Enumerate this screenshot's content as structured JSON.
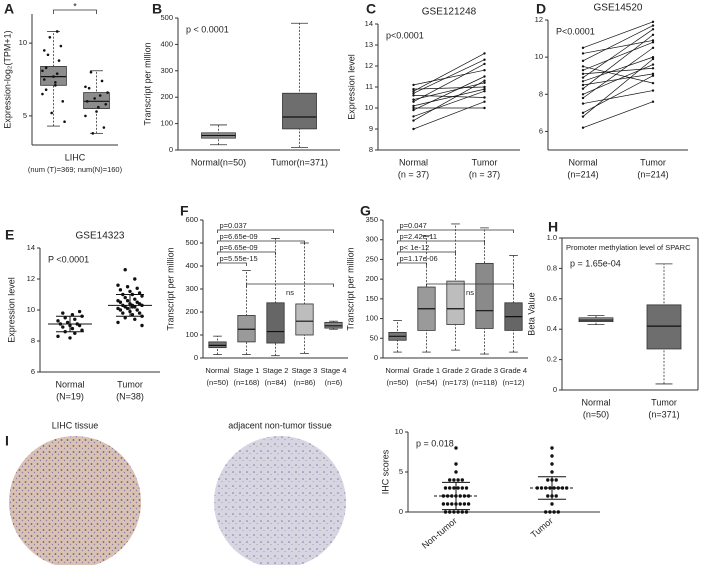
{
  "tissue_labels": [
    "LIHC tissue",
    "adjacent non-tumor tissue"
  ],
  "chart_data": [
    {
      "type": "box",
      "label": "A",
      "ylabel": "Expression-log₂(TPM+1)",
      "categories": [
        "LIHC"
      ],
      "category_notes": [
        "(num (T)=369; num(N)=160)"
      ],
      "significance": "*",
      "ylim": [
        3,
        12
      ],
      "yticks": [
        5,
        10
      ],
      "colors": [
        "#8c8c8c",
        "#8c8c8c"
      ],
      "point_color": "#111",
      "boxes": [
        {
          "min": 4.3,
          "q1": 7.1,
          "median": 7.7,
          "q3": 8.4,
          "max": 10.8,
          "points": [
            6.5,
            7.1,
            7.5,
            7.9,
            8.3,
            8.8,
            9.2,
            9.8,
            10.4,
            6.0,
            5.2,
            4.6,
            7.7,
            8.1,
            7.3,
            9.5,
            10.8,
            6.8
          ]
        },
        {
          "min": 3.8,
          "q1": 5.5,
          "median": 6.0,
          "q3": 6.6,
          "max": 8.1,
          "points": [
            5.0,
            5.6,
            6.0,
            6.4,
            6.9,
            7.4,
            8.0,
            4.2,
            3.8,
            5.8,
            6.2,
            6.6,
            5.3,
            7.0
          ]
        }
      ]
    },
    {
      "type": "box",
      "label": "B",
      "pvalue": "p < 0.0001",
      "ylabel": "Transcript per million",
      "categories": [
        "Normal(n=50)",
        "Tumor(n=371)"
      ],
      "ylim": [
        0,
        500
      ],
      "yticks": [
        0,
        100,
        200,
        300,
        400,
        500
      ],
      "colors": [
        "#9a9a9a",
        "#6e6e6e"
      ],
      "boxes": [
        {
          "min": 20,
          "q1": 45,
          "median": 55,
          "q3": 65,
          "max": 95
        },
        {
          "min": 10,
          "q1": 80,
          "median": 125,
          "q3": 215,
          "max": 480
        }
      ]
    },
    {
      "type": "paired",
      "label": "C",
      "title": "GSE121248",
      "pvalue": "p<0.0001",
      "ylabel": "Expression  level",
      "categories": [
        "Normal",
        "Tumor"
      ],
      "category_notes": [
        "(n = 37)",
        "(n = 37)"
      ],
      "ylim": [
        8,
        14
      ],
      "yticks": [
        8,
        9,
        10,
        11,
        12,
        13,
        14
      ],
      "color": "#111",
      "pairs": [
        [
          9.0,
          10.3
        ],
        [
          9.6,
          10.8
        ],
        [
          9.9,
          11.5
        ],
        [
          10.1,
          10.9
        ],
        [
          10.3,
          12.1
        ],
        [
          10.4,
          11.2
        ],
        [
          10.6,
          10.5
        ],
        [
          10.8,
          12.6
        ],
        [
          10.9,
          11.0
        ],
        [
          11.1,
          11.8
        ],
        [
          10.0,
          10.0
        ],
        [
          9.4,
          11.3
        ],
        [
          10.7,
          12.3
        ]
      ]
    },
    {
      "type": "paired",
      "label": "D",
      "title": "GSE14520",
      "pvalue": "P<0.0001",
      "categories": [
        "Normal",
        "Tumor"
      ],
      "category_notes": [
        "(n=214)",
        "(n=214)"
      ],
      "ylim": [
        5,
        12
      ],
      "yticks": [
        6,
        8,
        10,
        12
      ],
      "color": "#111",
      "pairs": [
        [
          6.2,
          7.6
        ],
        [
          7.0,
          9.0
        ],
        [
          7.5,
          8.2
        ],
        [
          7.8,
          10.5
        ],
        [
          8.0,
          9.6
        ],
        [
          8.3,
          11.2
        ],
        [
          8.5,
          9.1
        ],
        [
          8.7,
          10.0
        ],
        [
          8.9,
          11.5
        ],
        [
          9.1,
          9.4
        ],
        [
          9.3,
          10.8
        ],
        [
          9.5,
          8.6
        ],
        [
          9.8,
          11.7
        ],
        [
          10.2,
          10.9
        ],
        [
          10.5,
          11.9
        ],
        [
          6.8,
          9.9
        ]
      ]
    },
    {
      "type": "dot",
      "label": "E",
      "title": "GSE14323",
      "pvalue": "P <0.0001",
      "ylabel": "Expression  level",
      "categories": [
        "Normal",
        "Tumor"
      ],
      "category_notes": [
        "(N=19)",
        "(N=38)"
      ],
      "ylim": [
        6,
        14
      ],
      "yticks": [
        6,
        8,
        10,
        12,
        14
      ],
      "color": "#111",
      "groups": [
        {
          "mean": 9.1,
          "sd": 0.5,
          "points": [
            8.3,
            8.5,
            8.6,
            8.7,
            8.8,
            8.9,
            9.0,
            9.0,
            9.1,
            9.1,
            9.2,
            9.3,
            9.4,
            9.5,
            9.6,
            9.7,
            9.8,
            9.9,
            8.2
          ]
        },
        {
          "mean": 10.3,
          "sd": 0.7,
          "points": [
            9.2,
            9.4,
            9.5,
            9.6,
            9.7,
            9.8,
            9.8,
            9.9,
            10.0,
            10.0,
            10.1,
            10.1,
            10.2,
            10.2,
            10.3,
            10.3,
            10.3,
            10.4,
            10.4,
            10.5,
            10.5,
            10.6,
            10.6,
            10.7,
            10.8,
            10.9,
            11.0,
            11.0,
            11.1,
            11.2,
            11.3,
            11.4,
            11.5,
            11.6,
            12.0,
            12.6,
            9.0,
            10.2
          ]
        }
      ]
    },
    {
      "type": "box",
      "label": "F",
      "ylabel": "Transcript per million",
      "categories": [
        "Normal",
        "Stage 1",
        "Stage 2",
        "Stage 3",
        "Stage 4"
      ],
      "category_notes": [
        "(n=50)",
        "(n=168)",
        "(n=84)",
        "(n=86)",
        "(n=6)"
      ],
      "ylim": [
        0,
        600
      ],
      "yticks": [
        0,
        100,
        200,
        300,
        400,
        500,
        600
      ],
      "colors": [
        "#777777",
        "#9a9a9a",
        "#666666",
        "#bdbdbd",
        "#888888"
      ],
      "boxes": [
        {
          "min": 15,
          "q1": 45,
          "median": 55,
          "q3": 70,
          "max": 95
        },
        {
          "min": 15,
          "q1": 70,
          "median": 125,
          "q3": 185,
          "max": 380
        },
        {
          "min": 10,
          "q1": 65,
          "median": 115,
          "q3": 240,
          "max": 520
        },
        {
          "min": 20,
          "q1": 100,
          "median": 160,
          "q3": 235,
          "max": 500
        },
        {
          "min": 125,
          "q1": 130,
          "median": 140,
          "q3": 155,
          "max": 160
        }
      ],
      "brackets": [
        {
          "label": "p=0.037",
          "from": 0,
          "to": 4
        },
        {
          "label": "p=6.65e-09",
          "from": 0,
          "to": 3
        },
        {
          "label": "p=6.65e-09",
          "from": 0,
          "to": 2
        },
        {
          "label": "p=5.55e-15",
          "from": 0,
          "to": 1
        },
        {
          "label": "ns",
          "from": 1,
          "to": 4
        }
      ]
    },
    {
      "type": "box",
      "label": "G",
      "ylabel": "Transcript per million",
      "categories": [
        "Normal",
        "Grade 1",
        "Grade 2",
        "Grade 3",
        "Grade 4"
      ],
      "category_notes": [
        "(n=50)",
        "(n=54)",
        "(n=173)",
        "(n=118)",
        "(n=12)"
      ],
      "ylim": [
        0,
        350
      ],
      "yticks": [
        0,
        50,
        100,
        150,
        200,
        250,
        300,
        350
      ],
      "colors": [
        "#777777",
        "#9a9a9a",
        "#bdbdbd",
        "#8a8a8a",
        "#666666"
      ],
      "boxes": [
        {
          "min": 15,
          "q1": 45,
          "median": 55,
          "q3": 65,
          "max": 95
        },
        {
          "min": 15,
          "q1": 70,
          "median": 125,
          "q3": 180,
          "max": 310
        },
        {
          "min": 20,
          "q1": 85,
          "median": 125,
          "q3": 195,
          "max": 340
        },
        {
          "min": 10,
          "q1": 75,
          "median": 120,
          "q3": 240,
          "max": 330
        },
        {
          "min": 15,
          "q1": 70,
          "median": 105,
          "q3": 140,
          "max": 260
        }
      ],
      "brackets": [
        {
          "label": "p=0.047",
          "from": 0,
          "to": 4
        },
        {
          "label": "p=2.42e-11",
          "from": 0,
          "to": 3
        },
        {
          "label": "p< 1e-12",
          "from": 0,
          "to": 2
        },
        {
          "label": "p=1.17e-06",
          "from": 0,
          "to": 1
        },
        {
          "label": "ns",
          "from": 1,
          "to": 4
        }
      ]
    },
    {
      "type": "box",
      "label": "H",
      "title": "Promoter methylation level of SPARC",
      "pvalue": "p = 1.65e-04",
      "ylabel": "Beta Value",
      "categories": [
        "Normal",
        "Tumor"
      ],
      "category_notes": [
        "(n=50)",
        "(n=371)"
      ],
      "ylim": [
        0,
        1
      ],
      "yticks": [
        0,
        0.2,
        0.4,
        0.6,
        0.8,
        {
          "value": 1,
          "label": "1.0"
        }
      ],
      "colors": [
        "#9a9a9a",
        "#6e6e6e"
      ],
      "boxes": [
        {
          "min": 0.43,
          "q1": 0.45,
          "median": 0.46,
          "q3": 0.475,
          "max": 0.49
        },
        {
          "min": 0.04,
          "q1": 0.27,
          "median": 0.42,
          "q3": 0.56,
          "max": 0.83
        }
      ]
    },
    {
      "type": "dot",
      "label": "I",
      "pvalue": "p = 0.018",
      "ylabel": "IHC scores",
      "categories": [
        "Non-tumor",
        "Tumor"
      ],
      "ylim": [
        0,
        10
      ],
      "yticks": [
        0,
        5,
        10
      ],
      "color": "#111",
      "groups": [
        {
          "mean": 2.0,
          "sd": 1.7,
          "points": [
            0,
            0,
            0,
            0,
            0,
            0,
            1,
            1,
            1,
            1,
            1,
            1,
            1,
            2,
            2,
            2,
            2,
            2,
            2,
            2,
            3,
            3,
            3,
            3,
            3,
            3,
            4,
            4,
            4,
            4,
            5,
            6,
            8
          ]
        },
        {
          "mean": 3.0,
          "sd": 1.4,
          "points": [
            0,
            0,
            0,
            0,
            1,
            2,
            2,
            2,
            3,
            3,
            3,
            3,
            3,
            3,
            3,
            3,
            4,
            4,
            4,
            5,
            6,
            7,
            8
          ]
        }
      ]
    }
  ]
}
